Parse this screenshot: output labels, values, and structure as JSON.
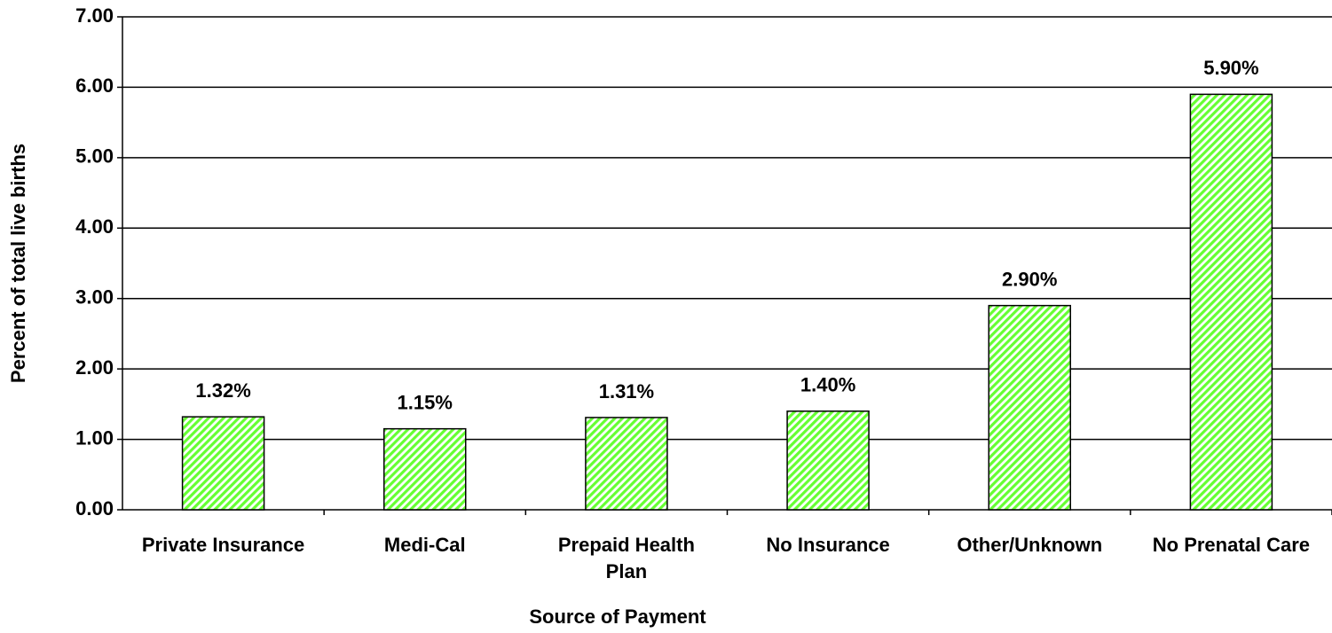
{
  "chart_data": {
    "type": "bar",
    "x_label": "Source of Payment",
    "y_label": "Percent of total live births",
    "categories": [
      "Private Insurance",
      "Medi-Cal",
      "Prepaid Health Plan",
      "No Insurance",
      "Other/Unknown",
      "No Prenatal Care"
    ],
    "values": [
      1.32,
      1.15,
      1.31,
      1.4,
      2.9,
      5.9
    ],
    "value_labels": [
      "1.32%",
      "1.15%",
      "1.31%",
      "1.40%",
      "2.90%",
      "5.90%"
    ],
    "color": "#66ff33",
    "ylim": [
      0,
      7
    ],
    "yticks": [
      {
        "value": 0,
        "label": "0.00"
      },
      {
        "value": 1,
        "label": "1.00"
      },
      {
        "value": 2,
        "label": "2.00"
      },
      {
        "value": 3,
        "label": "3.00"
      },
      {
        "value": 4,
        "label": "4.00"
      },
      {
        "value": 5,
        "label": "5.00"
      },
      {
        "value": 6,
        "label": "6.00"
      },
      {
        "value": 7,
        "label": "7.00"
      }
    ],
    "grid": true
  }
}
